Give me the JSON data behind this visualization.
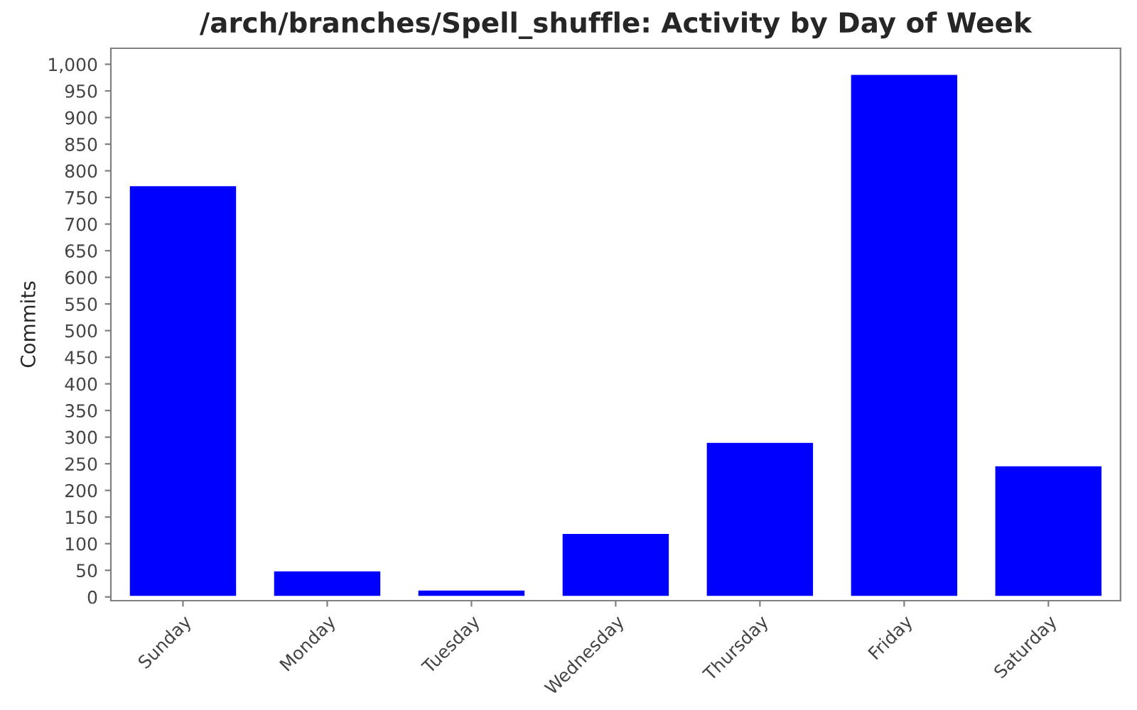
{
  "chart_data": {
    "type": "bar",
    "title": "/arch/branches/Spell_shuffle: Activity by Day of Week",
    "ylabel": "Commits",
    "categories": [
      "Sunday",
      "Monday",
      "Tuesday",
      "Wednesday",
      "Thursday",
      "Friday",
      "Saturday"
    ],
    "values": [
      773,
      50,
      14,
      120,
      291,
      982,
      247
    ],
    "color": "#0000ff",
    "ylim": [
      -7,
      1030
    ],
    "yticks": [
      0,
      50,
      100,
      150,
      200,
      250,
      300,
      350,
      400,
      450,
      500,
      550,
      600,
      650,
      700,
      750,
      800,
      850,
      900,
      950,
      {
        "value": 1000,
        "label": "1,000"
      }
    ],
    "grid": false,
    "legend": false
  }
}
